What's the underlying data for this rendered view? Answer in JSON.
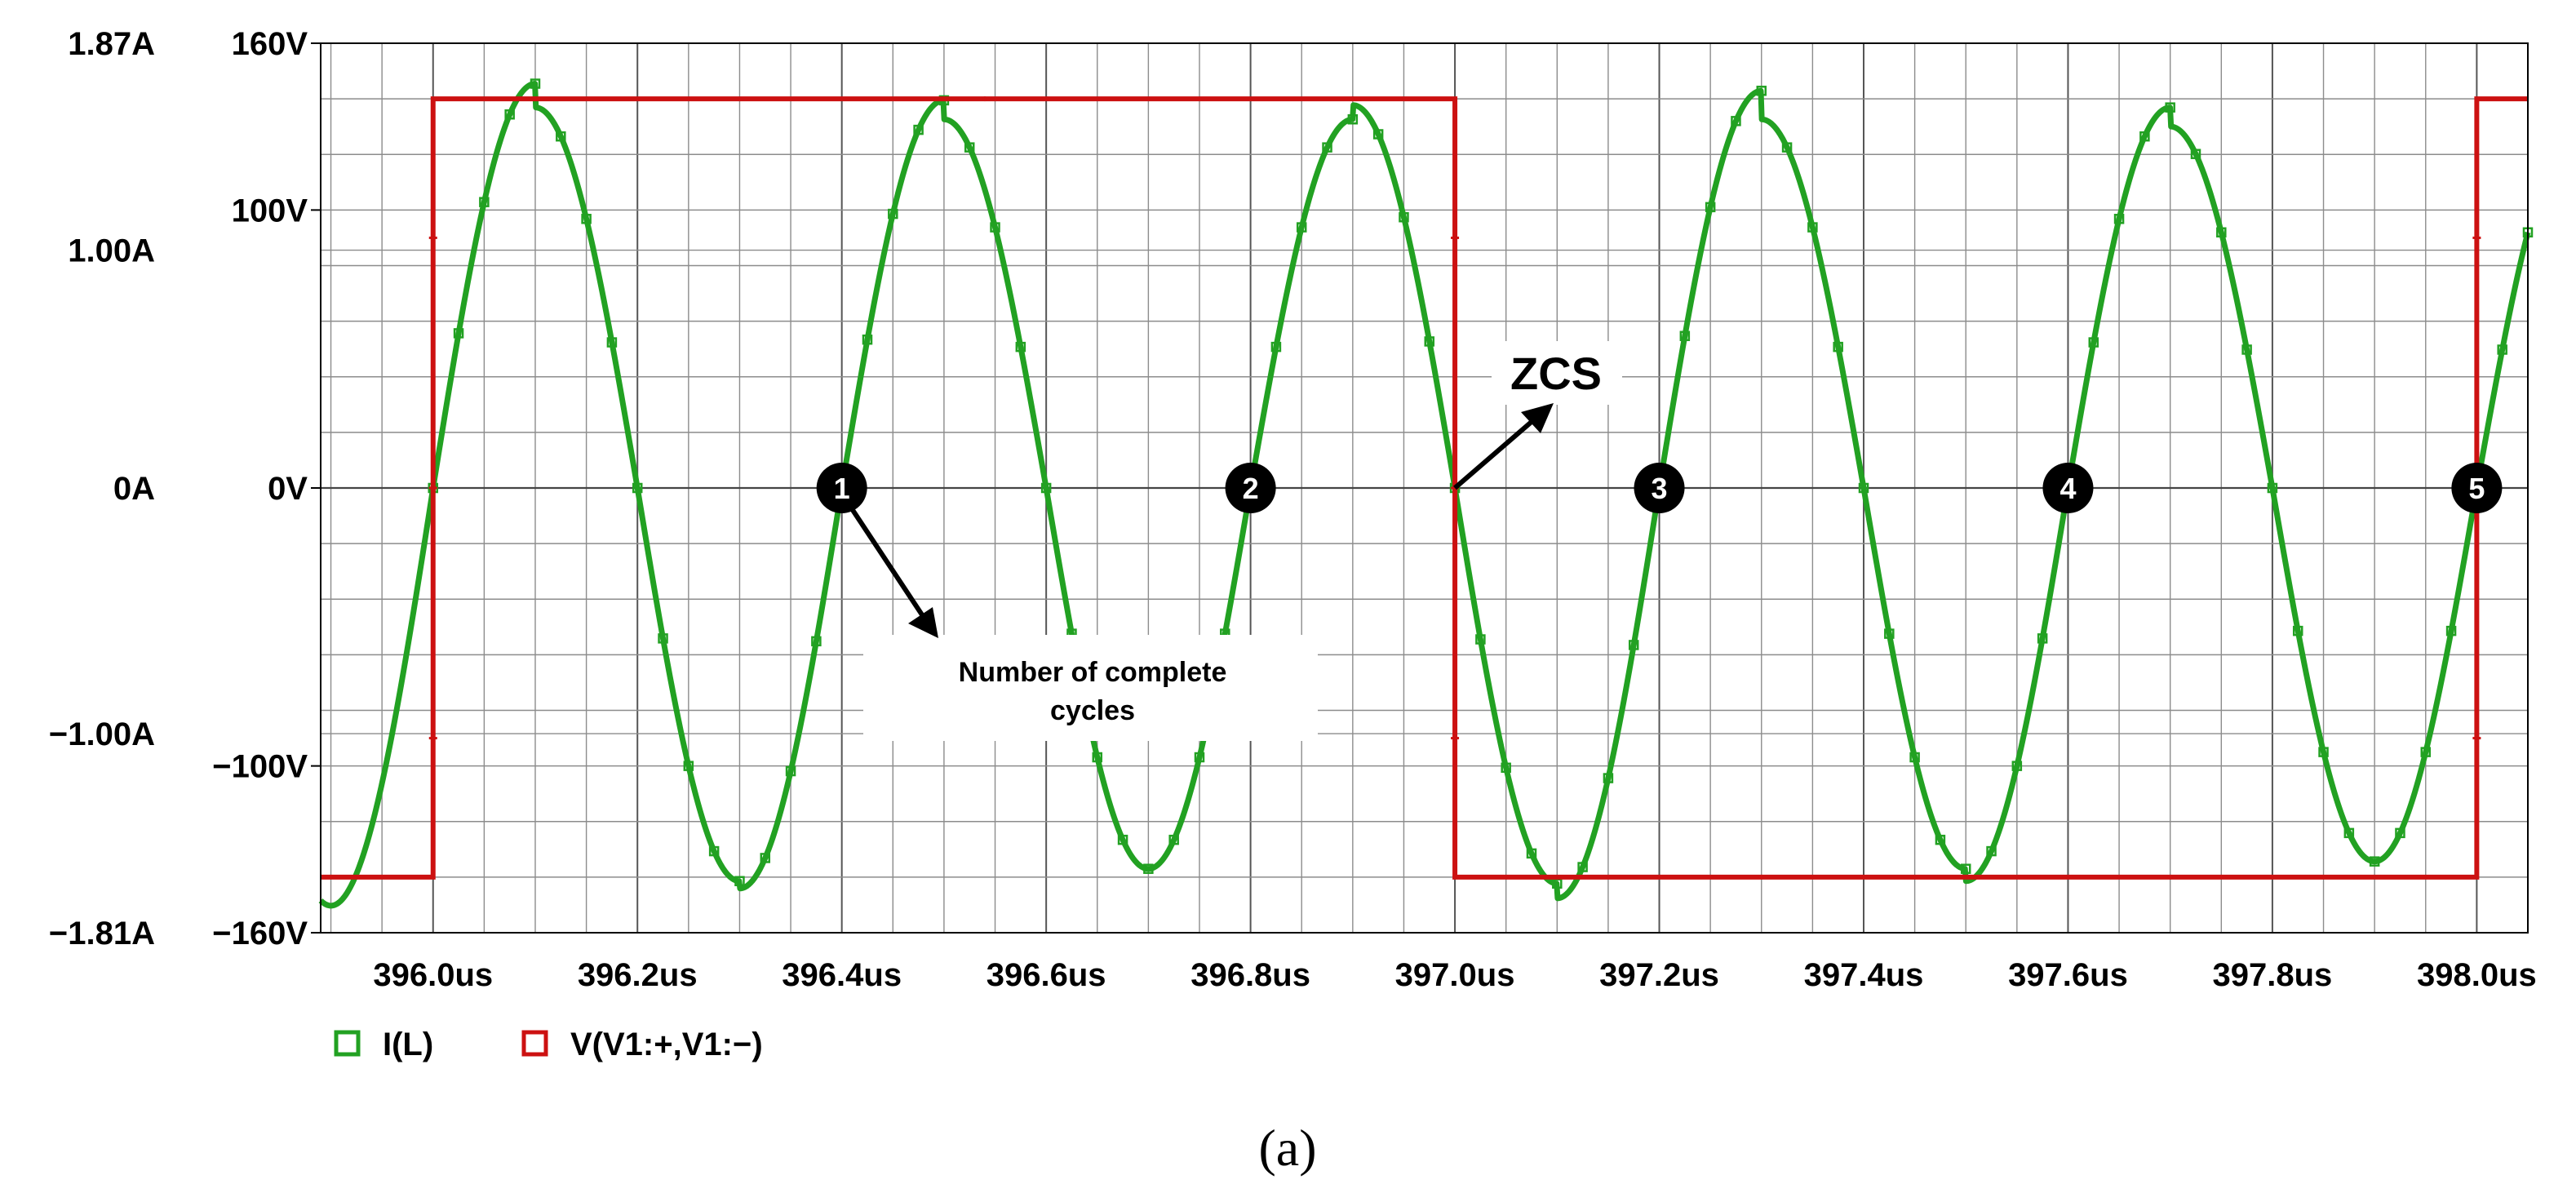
{
  "chart_data": {
    "type": "line",
    "x_unit": "us",
    "x_range": [
      395.89,
      398.05
    ],
    "x_ticks": [
      "396.0us",
      "396.2us",
      "396.4us",
      "396.6us",
      "396.8us",
      "397.0us",
      "397.2us",
      "397.4us",
      "397.6us",
      "397.8us",
      "398.0us"
    ],
    "x_tick_values": [
      396.0,
      396.2,
      396.4,
      396.6,
      396.8,
      397.0,
      397.2,
      397.4,
      397.6,
      397.8,
      398.0
    ],
    "y_left_current_ticks": [
      "1.87A",
      "1.00A",
      "0A",
      "−1.00A",
      "−1.81A"
    ],
    "y_left_current_values": [
      1.87,
      1.0,
      0,
      -1.0,
      -1.81
    ],
    "y_right_voltage_ticks": [
      "160V",
      "100V",
      "0V",
      "−100V",
      "−160V"
    ],
    "y_right_voltage_values": [
      160,
      100,
      0,
      -100,
      -160
    ],
    "grid": true,
    "series": [
      {
        "name": "I(L)",
        "color": "#22a122",
        "unit": "A",
        "shape": "sine",
        "period_us": 0.4,
        "zero_crossing_rising_us": 396.0,
        "amplitude_A": 1.65,
        "peak_points": [
          {
            "x": 396.1,
            "y": 1.7
          },
          {
            "x": 396.3,
            "y": -1.6
          },
          {
            "x": 396.5,
            "y": 1.63
          },
          {
            "x": 396.7,
            "y": -1.55
          },
          {
            "x": 396.9,
            "y": 1.55
          },
          {
            "x": 397.1,
            "y": -1.61
          },
          {
            "x": 397.3,
            "y": 1.67
          },
          {
            "x": 397.5,
            "y": -1.55
          },
          {
            "x": 397.7,
            "y": 1.6
          },
          {
            "x": 397.9,
            "y": -1.52
          }
        ]
      },
      {
        "name": "V(V1:+,V1:−)",
        "color": "#cc1111",
        "unit": "V",
        "shape": "square",
        "points": [
          {
            "x": 395.89,
            "y": -140
          },
          {
            "x": 396.0,
            "y": -140
          },
          {
            "x": 396.0,
            "y": 140
          },
          {
            "x": 397.0,
            "y": 140
          },
          {
            "x": 397.0,
            "y": -140
          },
          {
            "x": 398.0,
            "y": -140
          },
          {
            "x": 398.0,
            "y": 140
          },
          {
            "x": 398.05,
            "y": 140
          }
        ]
      }
    ],
    "cycle_markers": [
      {
        "label": "1",
        "x": 396.4
      },
      {
        "label": "2",
        "x": 396.8
      },
      {
        "label": "3",
        "x": 397.2
      },
      {
        "label": "4",
        "x": 397.6
      },
      {
        "label": "5",
        "x": 398.0
      }
    ],
    "annotations": {
      "cycles_line1": "Number  of  complete",
      "cycles_line2": "cycles",
      "zcs": "ZCS"
    },
    "legend": [
      {
        "label": "I(L)",
        "color": "#22a122"
      },
      {
        "label": "V(V1:+,V1:−)",
        "color": "#cc1111"
      }
    ],
    "legend_position": "bottom-left"
  },
  "caption": "(a)"
}
